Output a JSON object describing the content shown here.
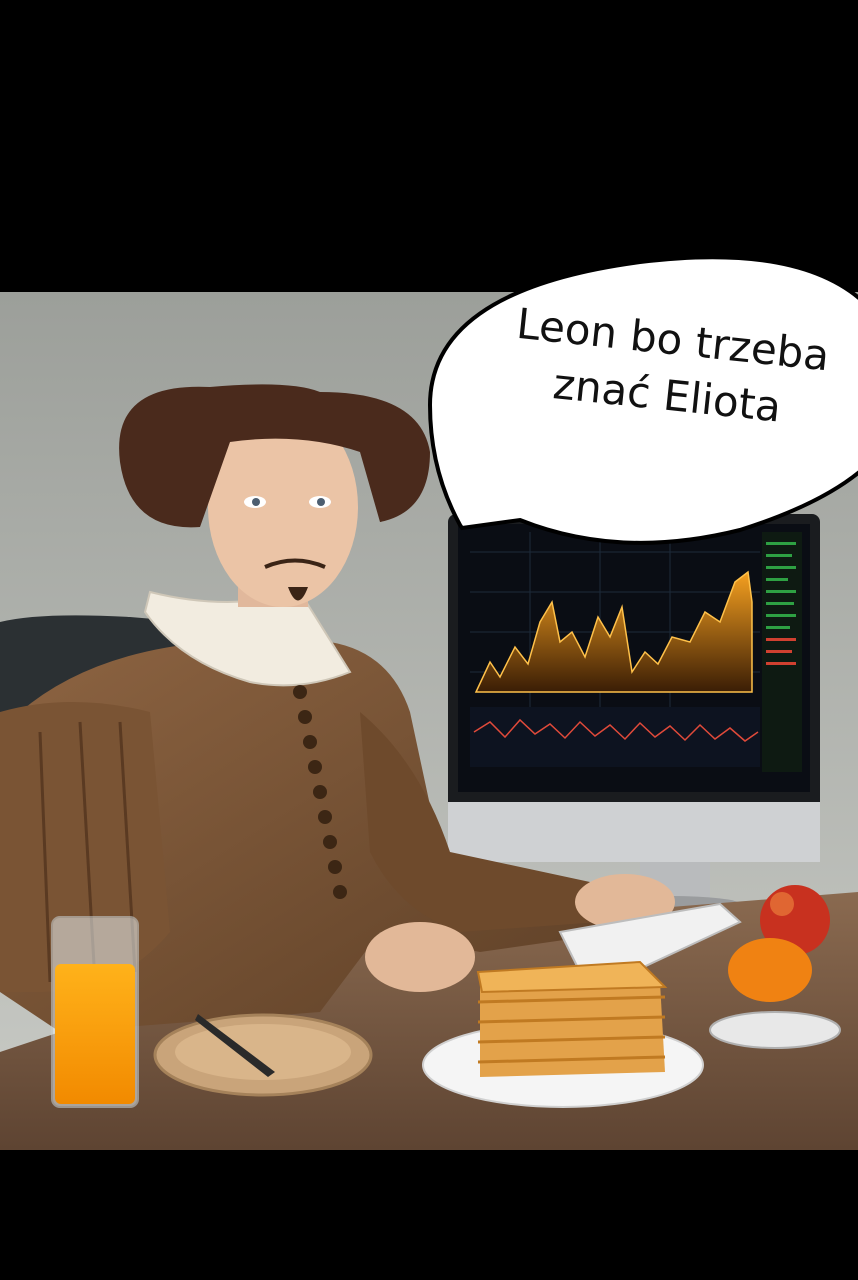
{
  "speech_bubble": {
    "line1": "Leon bo trzeba",
    "line2": "znać Eliota"
  },
  "icons": [
    "person-illustration",
    "monitor-with-chart",
    "keyboard",
    "mouse",
    "waffles",
    "juice-glass",
    "apple",
    "orange",
    "knife"
  ]
}
